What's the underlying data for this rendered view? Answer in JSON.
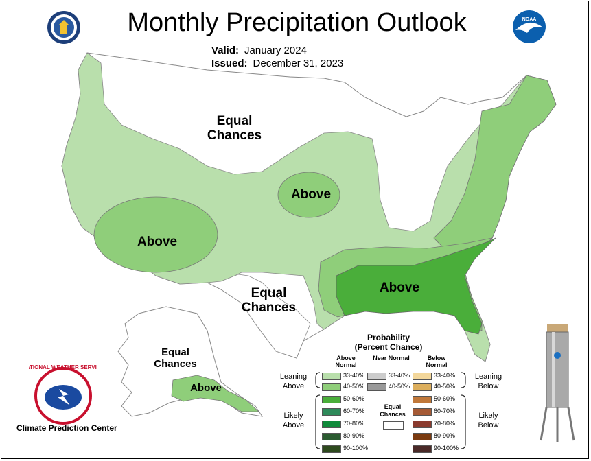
{
  "title": "Monthly Precipitation Outlook",
  "valid": {
    "label": "Valid:",
    "value": "January 2024"
  },
  "issued": {
    "label": "Issued:",
    "value": "December 31, 2023"
  },
  "map_labels": {
    "equal_chances_1": "Equal",
    "equal_chances_2": "Chances",
    "above": "Above"
  },
  "legend": {
    "title_1": "Probability",
    "title_2": "(Percent Chance)",
    "col_above": "Above Normal",
    "col_near": "Near Normal",
    "col_below": "Below Normal",
    "leaning": "Leaning",
    "likely": "Likely",
    "above": "Above",
    "below": "Below",
    "equal_1": "Equal",
    "equal_2": "Chances",
    "above_bins": [
      {
        "label": "33-40%",
        "color": "#b9dfac"
      },
      {
        "label": "40-50%",
        "color": "#8fce7a"
      },
      {
        "label": "50-60%",
        "color": "#4aae3a"
      },
      {
        "label": "60-70%",
        "color": "#2e8a5a"
      },
      {
        "label": "70-80%",
        "color": "#0f8a3a"
      },
      {
        "label": "80-90%",
        "color": "#2a5a30"
      },
      {
        "label": "90-100%",
        "color": "#2e4a1e"
      }
    ],
    "near_bins": [
      {
        "label": "33-40%",
        "color": "#cccccc"
      },
      {
        "label": "40-50%",
        "color": "#999999"
      }
    ],
    "below_bins": [
      {
        "label": "33-40%",
        "color": "#f3d79b"
      },
      {
        "label": "40-50%",
        "color": "#dcae5c"
      },
      {
        "label": "50-60%",
        "color": "#c0783a"
      },
      {
        "label": "60-70%",
        "color": "#a55a35"
      },
      {
        "label": "70-80%",
        "color": "#8a3a2e"
      },
      {
        "label": "80-90%",
        "color": "#7a3a10"
      },
      {
        "label": "90-100%",
        "color": "#4a2a28"
      }
    ]
  },
  "footer": {
    "cpc": "Climate Prediction Center"
  }
}
